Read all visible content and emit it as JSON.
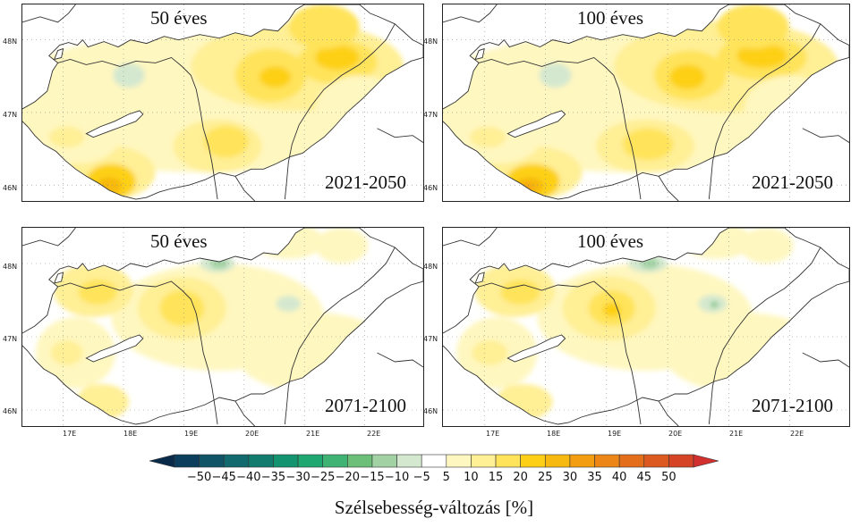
{
  "panels": [
    {
      "title": "50 éves",
      "years": "2021-2050"
    },
    {
      "title": "100 éves",
      "years": "2021-2050"
    },
    {
      "title": "50 éves",
      "years": "2071-2100"
    },
    {
      "title": "100 éves",
      "years": "2071-2100"
    }
  ],
  "lat_labels": [
    "48N",
    "47N",
    "46N"
  ],
  "lon_labels": [
    "17E",
    "18E",
    "19E",
    "20E",
    "21E",
    "22E"
  ],
  "colorbar": {
    "ticks": [
      "−50",
      "−45",
      "−40",
      "−35",
      "−30",
      "−25",
      "−20",
      "−15",
      "−10",
      "−5",
      "5",
      "10",
      "15",
      "20",
      "25",
      "30",
      "35",
      "40",
      "45",
      "50"
    ],
    "colors": [
      "#0b3d5c",
      "#0f5567",
      "#116a6d",
      "#127c6e",
      "#13936f",
      "#1ea771",
      "#3fb374",
      "#6cbf78",
      "#a2d2a4",
      "#d4e8cf",
      "#ffffff",
      "#fff7c0",
      "#ffef95",
      "#ffe35a",
      "#fdd017",
      "#f7b90f",
      "#f29d12",
      "#ec8616",
      "#e46f1b",
      "#dc5a20",
      "#d54525"
    ],
    "under_color": "#0a2a4a",
    "over_color": "#d22f2f",
    "title": "Szélsebesség-változás [%]"
  }
}
